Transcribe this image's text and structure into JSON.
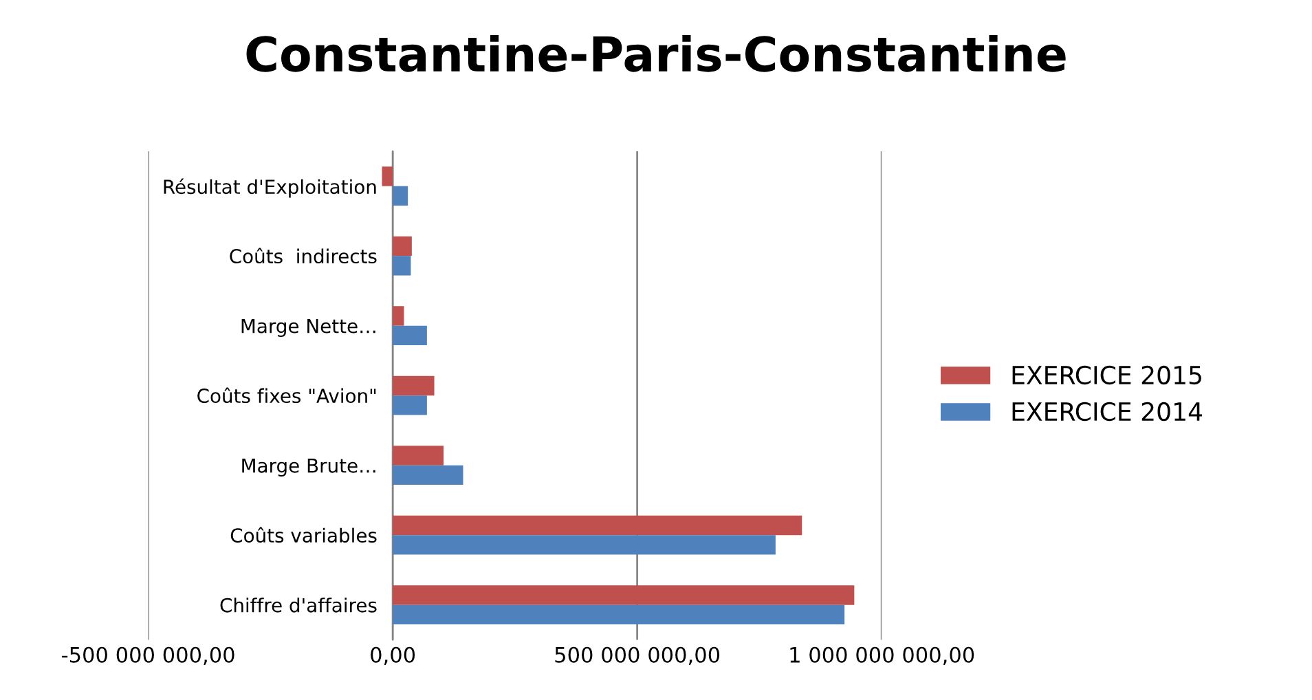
{
  "chart_data": {
    "type": "bar",
    "orientation": "horizontal",
    "title": "Constantine-Paris-Constantine",
    "categories": [
      "Résultat d'Exploitation",
      "Coûts  indirects",
      "Marge Nette…",
      "Coûts fixes \"Avion\"",
      "Marge Brute…",
      "Coûts variables",
      "Chiffre d'affaires"
    ],
    "series": [
      {
        "name": "EXERCICE 2015",
        "color": "#c0504d",
        "values": [
          -22000000,
          39000000,
          23000000,
          85000000,
          104000000,
          837000000,
          944000000
        ]
      },
      {
        "name": "EXERCICE 2014",
        "color": "#4f81bd",
        "values": [
          31000000,
          37000000,
          70000000,
          70000000,
          144000000,
          783000000,
          924000000
        ]
      }
    ],
    "xlim": [
      -500000000,
      1000000000
    ],
    "xticks": [
      {
        "value": -500000000,
        "label": "-500 000 000,00"
      },
      {
        "value": 0,
        "label": "0,00"
      },
      {
        "value": 500000000,
        "label": "500 000 000,00"
      },
      {
        "value": 1000000000,
        "label": "1 000 000 000,00"
      }
    ],
    "grid": "x",
    "legend": "right"
  }
}
